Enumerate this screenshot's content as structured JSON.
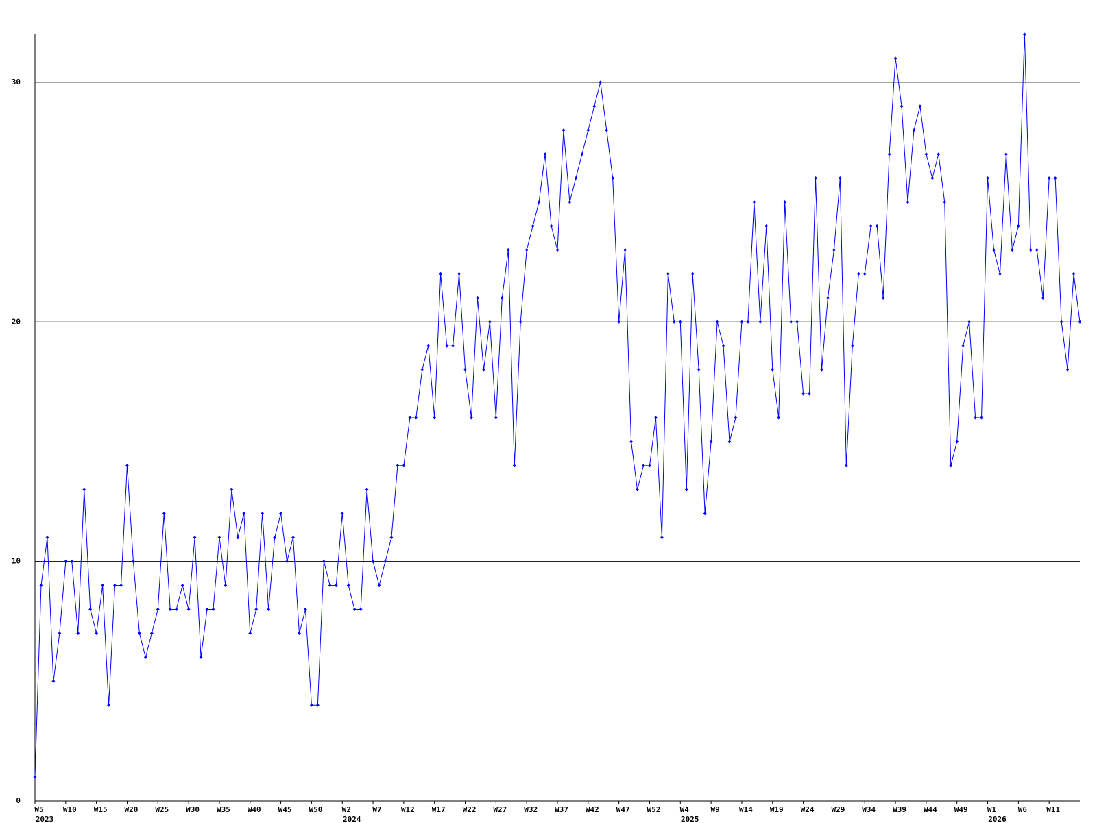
{
  "chart_data": {
    "type": "line",
    "categories": [
      "W5",
      null,
      null,
      null,
      null,
      "W10",
      null,
      null,
      null,
      null,
      "W15",
      null,
      null,
      null,
      null,
      "W20",
      null,
      null,
      null,
      null,
      "W25",
      null,
      null,
      null,
      null,
      "W30",
      null,
      null,
      null,
      null,
      "W35",
      null,
      null,
      null,
      null,
      "W40",
      null,
      null,
      null,
      null,
      "W45",
      null,
      null,
      null,
      null,
      "W50",
      null,
      null,
      null,
      null,
      "W2",
      null,
      null,
      null,
      null,
      "W7",
      null,
      null,
      null,
      null,
      "W12",
      null,
      null,
      null,
      null,
      "W17",
      null,
      null,
      null,
      null,
      "W22",
      null,
      null,
      null,
      null,
      "W27",
      null,
      null,
      null,
      null,
      "W32",
      null,
      null,
      null,
      null,
      "W37",
      null,
      null,
      null,
      null,
      "W42",
      null,
      null,
      null,
      null,
      "W47",
      null,
      null,
      null,
      null,
      "W52",
      null,
      null,
      null,
      null,
      "W4",
      null,
      null,
      null,
      null,
      "W9",
      null,
      null,
      null,
      null,
      "W14",
      null,
      null,
      null,
      null,
      "W19",
      null,
      null,
      null,
      null,
      "W24",
      null,
      null,
      null,
      null,
      "W29",
      null,
      null,
      null,
      null,
      "W34",
      null,
      null,
      null,
      null,
      "W39",
      null,
      null,
      null,
      null,
      "W44",
      null,
      null,
      null,
      null,
      "W49",
      null,
      null,
      null,
      null,
      "W1",
      null,
      null,
      null,
      null,
      "W6",
      null,
      null,
      null,
      null,
      "W11",
      null,
      null,
      null,
      null,
      null
    ],
    "category_years": [
      "2023",
      null,
      null,
      null,
      null,
      null,
      null,
      null,
      null,
      null,
      null,
      null,
      null,
      null,
      null,
      null,
      null,
      null,
      null,
      null,
      null,
      null,
      null,
      null,
      null,
      null,
      null,
      null,
      null,
      null,
      null,
      null,
      null,
      null,
      null,
      null,
      null,
      null,
      null,
      null,
      null,
      null,
      null,
      null,
      null,
      null,
      null,
      null,
      null,
      null,
      "2024",
      null,
      null,
      null,
      null,
      null,
      null,
      null,
      null,
      null,
      null,
      null,
      null,
      null,
      null,
      null,
      null,
      null,
      null,
      null,
      null,
      null,
      null,
      null,
      null,
      null,
      null,
      null,
      null,
      null,
      null,
      null,
      null,
      null,
      null,
      null,
      null,
      null,
      null,
      null,
      null,
      null,
      null,
      null,
      null,
      null,
      null,
      null,
      null,
      null,
      null,
      null,
      null,
      null,
      null,
      "2025",
      null,
      null,
      null,
      null,
      null,
      null,
      null,
      null,
      null,
      null,
      null,
      null,
      null,
      null,
      null,
      null,
      null,
      null,
      null,
      null,
      null,
      null,
      null,
      null,
      null,
      null,
      null,
      null,
      null,
      null,
      null,
      null,
      null,
      null,
      null,
      null,
      null,
      null,
      null,
      null,
      null,
      null,
      null,
      null,
      null,
      null,
      null,
      null,
      null,
      "2026",
      null,
      null,
      null,
      null,
      null,
      null,
      null,
      null,
      null,
      null,
      null,
      null,
      null,
      null,
      null
    ],
    "series": [
      {
        "color": "#0000ff",
        "values": [
          1,
          9,
          11,
          5,
          7,
          10,
          10,
          7,
          13,
          8,
          7,
          9,
          4,
          9,
          9,
          14,
          10,
          7,
          6,
          7,
          8,
          12,
          8,
          8,
          9,
          8,
          11,
          6,
          8,
          8,
          11,
          9,
          13,
          11,
          12,
          7,
          8,
          12,
          8,
          11,
          12,
          10,
          11,
          7,
          8,
          4,
          4,
          10,
          9,
          9,
          12,
          9,
          8,
          8,
          13,
          10,
          9,
          10,
          11,
          14,
          14,
          16,
          16,
          18,
          19,
          16,
          22,
          19,
          19,
          22,
          18,
          16,
          21,
          18,
          20,
          16,
          21,
          23,
          14,
          20,
          23,
          24,
          25,
          27,
          24,
          23,
          28,
          25,
          26,
          27,
          28,
          29,
          30,
          28,
          26,
          20,
          23,
          15,
          13,
          14,
          14,
          16,
          11,
          22,
          20,
          20,
          13,
          22,
          18,
          12,
          15,
          20,
          19,
          15,
          16,
          20,
          20,
          25,
          20,
          24,
          18,
          16,
          25,
          20,
          20,
          17,
          17,
          26,
          18,
          21,
          23,
          26,
          14,
          19,
          22,
          22,
          24,
          24,
          21,
          27,
          31,
          29,
          25,
          28,
          29,
          27,
          26,
          27,
          25,
          14,
          15,
          19,
          20,
          16,
          16,
          26,
          23,
          22,
          27,
          23,
          24,
          32,
          23,
          23,
          21,
          26,
          26,
          20,
          18,
          22,
          20
        ]
      }
    ],
    "ylim": [
      0,
      32
    ],
    "yticks": [
      0,
      10,
      20,
      30
    ],
    "grid": true
  }
}
